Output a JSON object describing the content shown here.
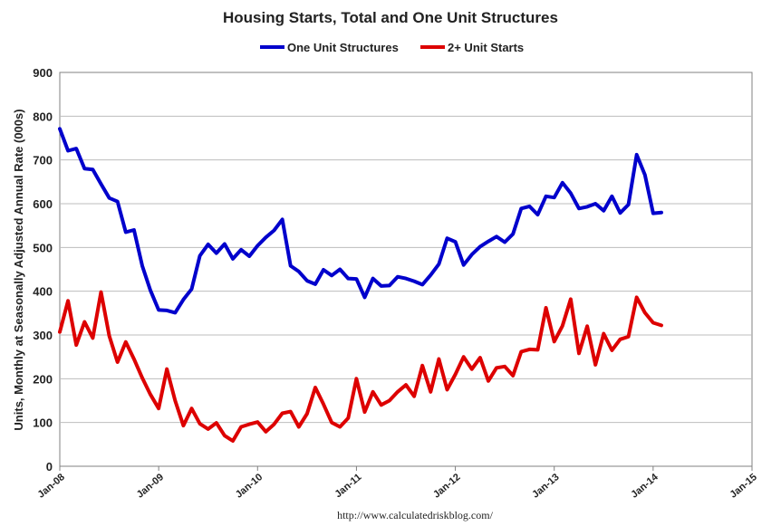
{
  "chart_data": {
    "type": "line",
    "title": "Housing Starts, Total and One Unit Structures",
    "ylabel": "Units, Monthly at Seasonally Adjusted Annual Rate (000s)",
    "xlabel": "",
    "ylim": [
      0,
      900
    ],
    "yticks": [
      0,
      100,
      200,
      300,
      400,
      500,
      600,
      700,
      800,
      900
    ],
    "xlim": [
      "Jan-08",
      "Jan-15"
    ],
    "xticks": [
      "Jan-08",
      "Jan-09",
      "Jan-10",
      "Jan-11",
      "Jan-12",
      "Jan-13",
      "Jan-14",
      "Jan-15"
    ],
    "grid": true,
    "legend_position": "top",
    "source": "http://www.calculatedriskblog.com/",
    "start_month": "Jan-08",
    "series": [
      {
        "name": "One Unit Structures",
        "color": "#0000cc",
        "values": [
          771,
          721,
          726,
          680,
          678,
          645,
          613,
          605,
          535,
          540,
          458,
          402,
          357,
          356,
          351,
          381,
          405,
          481,
          507,
          487,
          508,
          474,
          495,
          480,
          504,
          523,
          539,
          564,
          458,
          445,
          424,
          416,
          449,
          436,
          450,
          429,
          428,
          386,
          429,
          412,
          413,
          433,
          429,
          423,
          415,
          437,
          462,
          521,
          513,
          460,
          484,
          502,
          514,
          525,
          512,
          531,
          589,
          594,
          575,
          617,
          614,
          648,
          624,
          589,
          593,
          600,
          584,
          617,
          579,
          598,
          712,
          666,
          578,
          580
        ]
      },
      {
        "name": "2+ Unit Starts",
        "color": "#dd0000",
        "values": [
          307,
          378,
          277,
          330,
          293,
          398,
          298,
          238,
          284,
          245,
          202,
          164,
          132,
          222,
          150,
          93,
          132,
          97,
          85,
          99,
          70,
          58,
          90,
          96,
          101,
          79,
          96,
          121,
          125,
          90,
          120,
          180,
          142,
          100,
          90,
          110,
          200,
          124,
          170,
          140,
          150,
          170,
          186,
          160,
          230,
          170,
          245,
          175,
          210,
          250,
          222,
          248,
          195,
          225,
          228,
          207,
          262,
          267,
          266,
          362,
          285,
          321,
          382,
          258,
          320,
          232,
          303,
          265,
          290,
          296,
          386,
          351,
          328,
          322
        ]
      }
    ]
  }
}
